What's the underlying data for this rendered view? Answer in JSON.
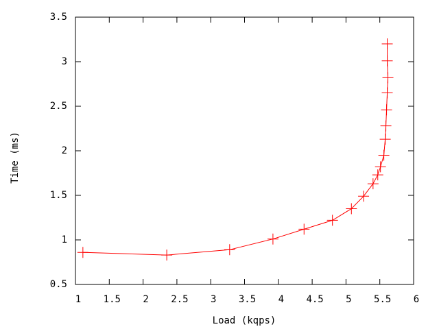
{
  "chart_data": {
    "type": "line",
    "x_label": "Load (kqps)",
    "y_label": "Time (ms)",
    "x": [
      1.11,
      2.35,
      3.28,
      3.92,
      4.38,
      4.8,
      5.08,
      5.26,
      5.4,
      5.47,
      5.51,
      5.56,
      5.58,
      5.59,
      5.6,
      5.61,
      5.62,
      5.61,
      5.61
    ],
    "series": [
      {
        "color": "#ff0000",
        "values": [
          0.86,
          0.83,
          0.89,
          1.01,
          1.12,
          1.22,
          1.35,
          1.49,
          1.63,
          1.73,
          1.82,
          1.95,
          2.13,
          2.28,
          2.46,
          2.65,
          2.82,
          3.01,
          3.2
        ]
      }
    ],
    "xlim": [
      1,
      6
    ],
    "xticks": [
      1,
      1.5,
      2,
      2.5,
      3,
      3.5,
      4,
      4.5,
      5,
      5.5,
      6
    ],
    "ylim": [
      0.5,
      3.5
    ],
    "yticks": [
      0.5,
      1,
      1.5,
      2,
      2.5,
      3,
      3.5
    ],
    "grid": false
  }
}
